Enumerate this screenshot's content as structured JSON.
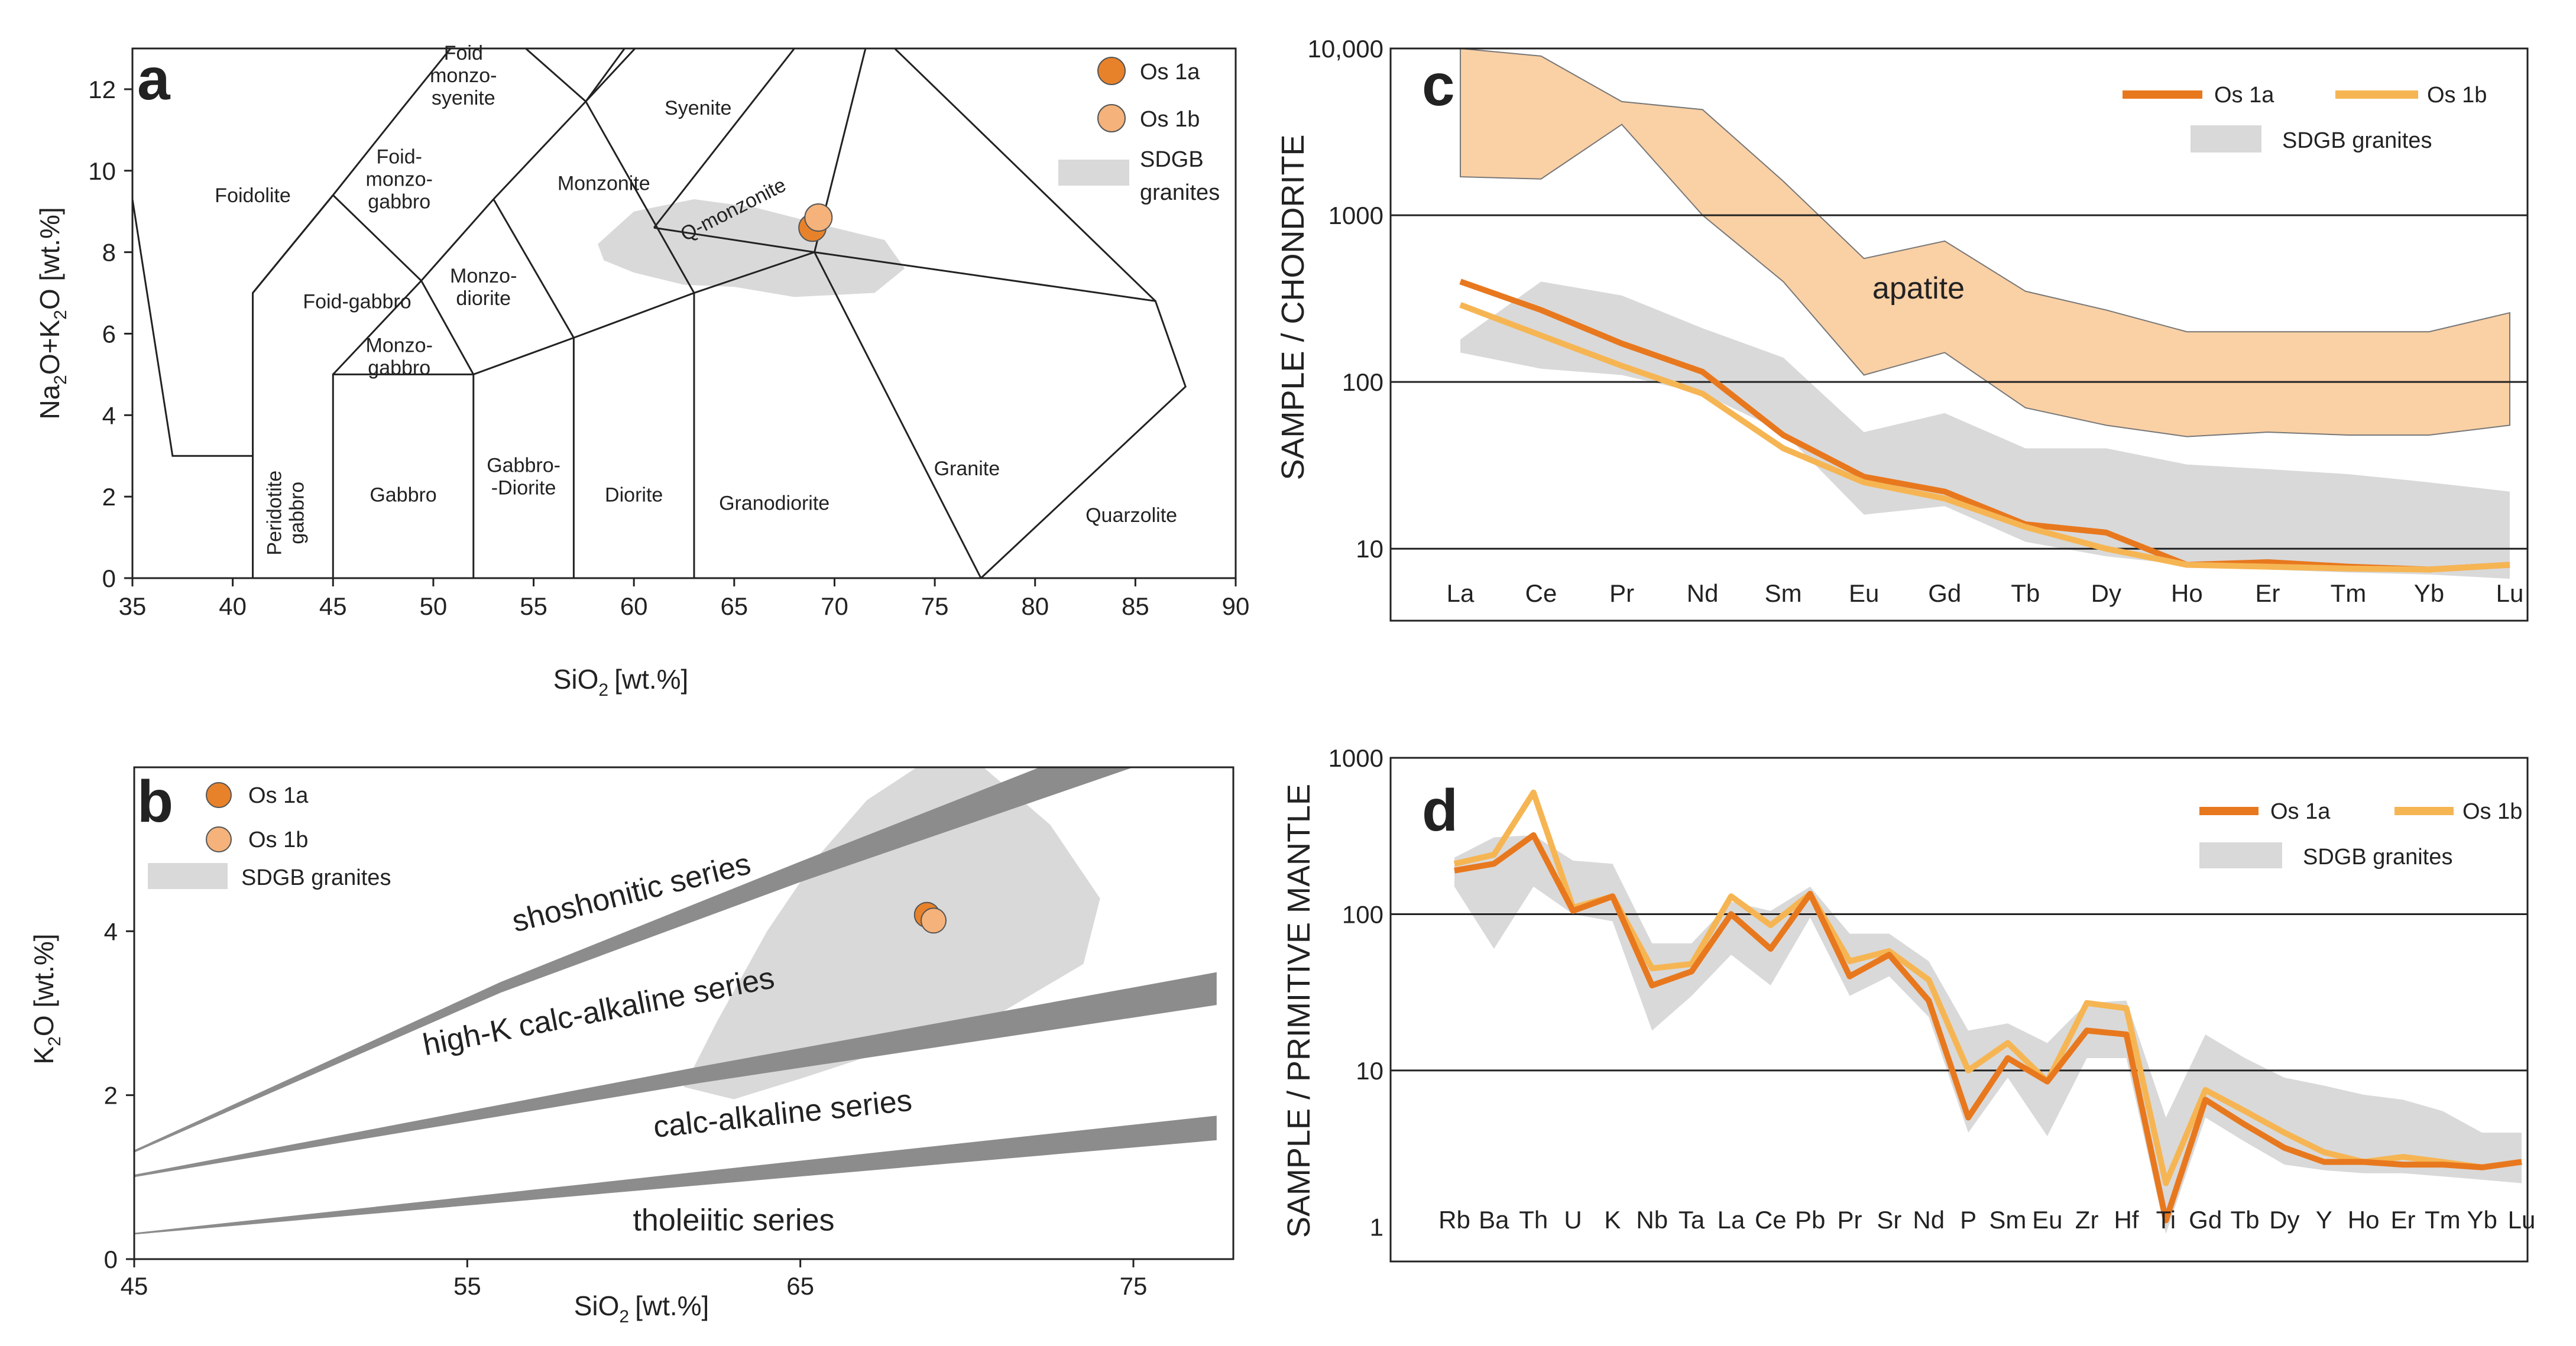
{
  "chart_data": [
    {
      "panel": "a",
      "type": "scatter",
      "xlabel": "SiO",
      "xlabel_sub": "2",
      "xlabel_unit": "[wt.%]",
      "ylabel_parts": {
        "na": "Na",
        "sub1": "2",
        "mid": "O+K",
        "sub2": "2",
        "end": "O [wt.%]"
      },
      "xlim": [
        35,
        90
      ],
      "ylim": [
        0,
        13
      ],
      "xticks": [
        35,
        40,
        45,
        50,
        55,
        60,
        65,
        70,
        75,
        80,
        85,
        90
      ],
      "yticks": [
        0,
        2,
        4,
        6,
        8,
        10,
        12
      ],
      "field_labels": [
        {
          "id": "foid-monzo-syenite",
          "lines": [
            "Foid",
            "monzo-",
            "syenite"
          ]
        },
        {
          "id": "syenite",
          "lines": [
            "Syenite"
          ]
        },
        {
          "id": "foid-monzo-gabbro",
          "lines": [
            "Foid-",
            "monzo-",
            "gabbro"
          ]
        },
        {
          "id": "foidolite",
          "lines": [
            "Foidolite"
          ]
        },
        {
          "id": "monzonite",
          "lines": [
            "Monzonite"
          ]
        },
        {
          "id": "q-monzonite",
          "lines": [
            "Q-monzonite"
          ]
        },
        {
          "id": "foid-gabbro",
          "lines": [
            "Foid-gabbro"
          ]
        },
        {
          "id": "monzo-diorite",
          "lines": [
            "Monzo-",
            "diorite"
          ]
        },
        {
          "id": "monzo-gabbro",
          "lines": [
            "Monzo-",
            "gabbro"
          ]
        },
        {
          "id": "peridotite-gabbro",
          "lines": [
            "Peridotite",
            "gabbro"
          ]
        },
        {
          "id": "gabbro",
          "lines": [
            "Gabbro"
          ]
        },
        {
          "id": "gabbro-diorite",
          "lines": [
            "Gabbro-",
            "-Diorite"
          ]
        },
        {
          "id": "diorite",
          "lines": [
            "Diorite"
          ]
        },
        {
          "id": "granodiorite",
          "lines": [
            "Granodiorite"
          ]
        },
        {
          "id": "granite",
          "lines": [
            "Granite"
          ]
        },
        {
          "id": "quarzolite",
          "lines": [
            "Quarzolite"
          ]
        }
      ],
      "samples": [
        {
          "name": "Os 1a",
          "x": 68.9,
          "y": 8.6,
          "color": "#e8822a"
        },
        {
          "name": "Os 1b",
          "x": 69.2,
          "y": 8.85,
          "color": "#f5b27a"
        }
      ],
      "legend": [
        "Os 1a",
        "Os 1b",
        "SDGB",
        "granites"
      ],
      "shaded_region_name": "SDGB granites"
    },
    {
      "panel": "b",
      "type": "scatter",
      "xlabel": "SiO",
      "xlabel_sub": "2",
      "xlabel_unit": "[wt.%]",
      "ylabel_parts": {
        "k": "K",
        "sub": "2",
        "end": "O [wt.%]"
      },
      "xlim": [
        45,
        78
      ],
      "ylim": [
        0,
        6
      ],
      "xticks": [
        45,
        55,
        65,
        75
      ],
      "yticks": [
        0,
        2,
        4
      ],
      "series_labels": [
        "shoshonitic series",
        "high-K calc-alkaline series",
        "calc-alkaline series",
        "tholeiitic series"
      ],
      "samples": [
        {
          "name": "Os 1a",
          "x": 68.8,
          "y": 4.2,
          "color": "#e8822a"
        },
        {
          "name": "Os 1b",
          "x": 69.0,
          "y": 4.13,
          "color": "#f5b27a"
        }
      ],
      "legend": [
        "Os 1a",
        "Os 1b",
        "SDGB granites"
      ]
    },
    {
      "panel": "c",
      "type": "line",
      "yscale": "log",
      "ylabel": "SAMPLE / CHONDRITE",
      "ylim": [
        3.7,
        10000
      ],
      "yticks": [
        "10,000",
        "1000",
        "100",
        "10"
      ],
      "categories": [
        "La",
        "Ce",
        "Pr",
        "Nd",
        "Sm",
        "Eu",
        "Gd",
        "Tb",
        "Dy",
        "Ho",
        "Er",
        "Tm",
        "Yb",
        "Lu"
      ],
      "series": [
        {
          "name": "Os 1a",
          "color": "#e8781e",
          "values": [
            400,
            270,
            170,
            115,
            48,
            27,
            22,
            14,
            12.5,
            8,
            8.3,
            7.8,
            7.5,
            8
          ]
        },
        {
          "name": "Os 1b",
          "color": "#f6b553",
          "values": [
            290,
            190,
            125,
            85,
            40,
            25,
            20,
            13.5,
            10,
            8,
            7.8,
            7.6,
            7.5,
            8
          ]
        }
      ],
      "apatite_upper": [
        10000,
        9000,
        4800,
        4300,
        1600,
        550,
        700,
        350,
        270,
        200,
        200,
        200,
        200,
        260
      ],
      "apatite_lower": [
        1700,
        1650,
        3500,
        1000,
        400,
        110,
        150,
        70,
        55,
        47,
        50,
        48,
        48,
        55
      ],
      "sdgb_upper": [
        180,
        400,
        330,
        210,
        140,
        50,
        65,
        40,
        40,
        32,
        30,
        28,
        25,
        22
      ],
      "sdgb_lower": [
        150,
        120,
        110,
        85,
        50,
        16,
        18,
        11,
        9,
        8,
        7.5,
        7.2,
        7,
        6.6
      ],
      "apatite_label": "apatite",
      "legend": [
        "Os 1a",
        "Os 1b",
        "SDGB granites"
      ]
    },
    {
      "panel": "d",
      "type": "line",
      "yscale": "log",
      "ylabel": "SAMPLE / PRIMITIVE  MANTLE",
      "ylim": [
        0.6,
        1000
      ],
      "yticks": [
        "1000",
        "100",
        "10",
        "1"
      ],
      "categories": [
        "Rb",
        "Ba",
        "Th",
        "U",
        "K",
        "Nb",
        "Ta",
        "La",
        "Ce",
        "Pb",
        "Pr",
        "Sr",
        "Nd",
        "P",
        "Sm",
        "Eu",
        "Zr",
        "Hf",
        "Ti",
        "Gd",
        "Tb",
        "Dy",
        "Y",
        "Ho",
        "Er",
        "Tm",
        "Yb",
        "Lu"
      ],
      "series": [
        {
          "name": "Os 1a",
          "color": "#e8781e",
          "values": [
            190,
            210,
            320,
            105,
            130,
            35,
            43,
            100,
            60,
            135,
            40,
            55,
            28,
            5,
            12,
            8.5,
            18,
            17,
            1.1,
            6.5,
            4.5,
            3.2,
            2.6,
            2.6,
            2.5,
            2.5,
            2.4,
            2.6
          ]
        },
        {
          "name": "Os 1b",
          "color": "#f6b553",
          "values": [
            210,
            240,
            600,
            110,
            130,
            45,
            48,
            130,
            85,
            135,
            50,
            58,
            38,
            10,
            15,
            8.5,
            27,
            25,
            1.9,
            7.5,
            5.5,
            4,
            3,
            2.6,
            2.8,
            2.6,
            2.4,
            2.6
          ]
        }
      ],
      "sdgb_upper": [
        230,
        310,
        320,
        220,
        210,
        65,
        65,
        120,
        105,
        150,
        75,
        75,
        50,
        18,
        20,
        15,
        27,
        28,
        5,
        17,
        12,
        9,
        8,
        7,
        6.5,
        5.5,
        4,
        4
      ],
      "sdgb_lower": [
        150,
        60,
        150,
        100,
        90,
        18,
        30,
        55,
        35,
        95,
        30,
        40,
        22,
        4,
        9,
        3.8,
        12,
        12,
        0.9,
        5,
        3.5,
        2.5,
        2.3,
        2.2,
        2.2,
        2.1,
        2,
        1.9
      ],
      "legend": [
        "Os 1a",
        "Os 1b",
        "SDGB granites"
      ]
    }
  ]
}
